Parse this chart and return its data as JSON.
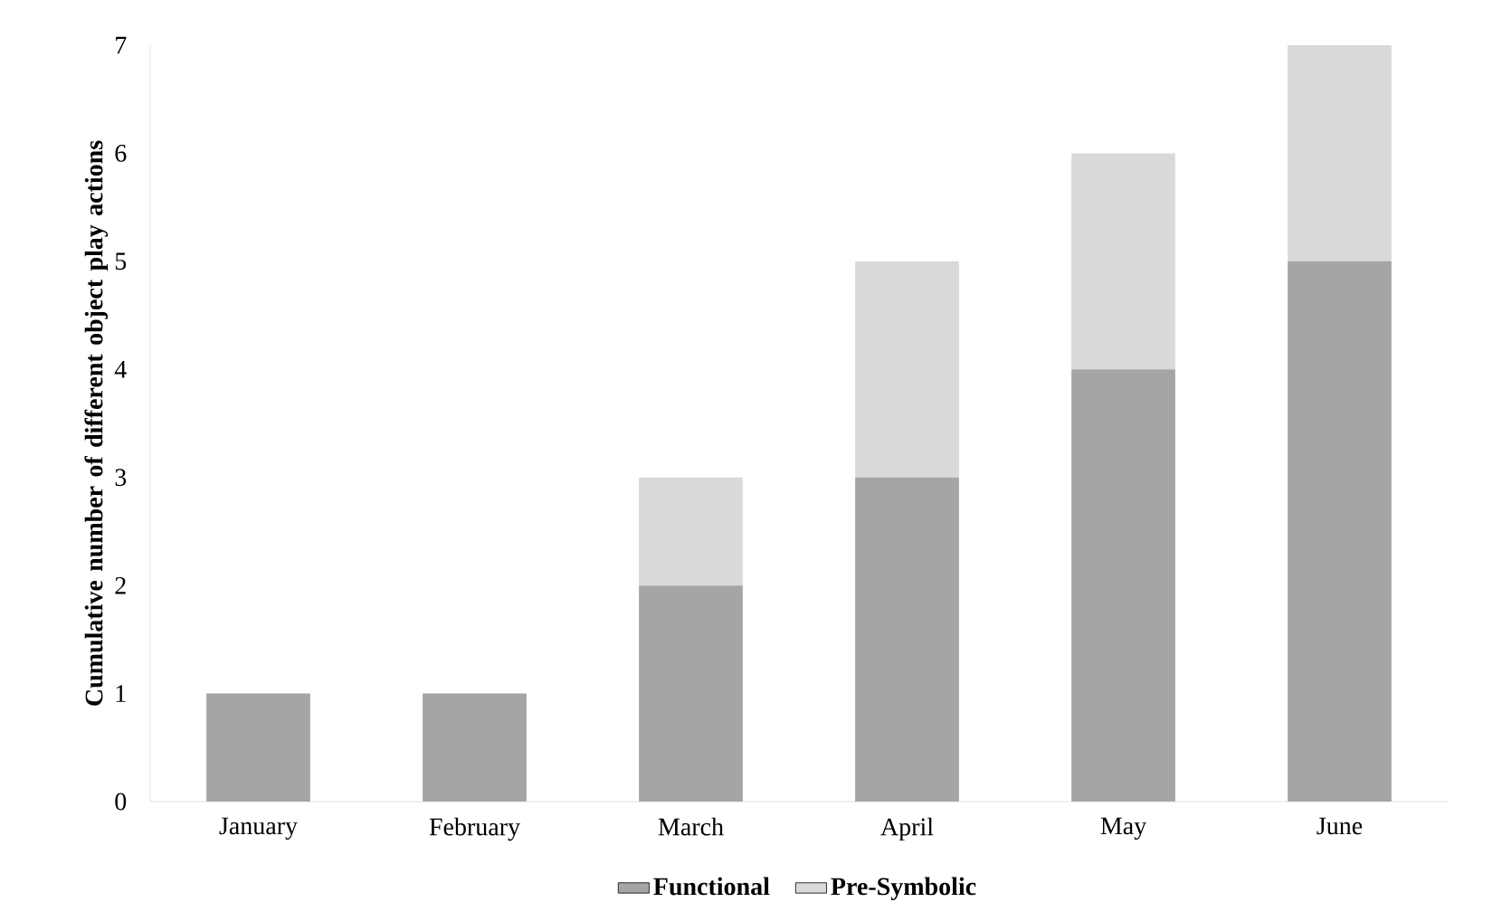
{
  "chart_data": {
    "type": "bar",
    "stacked": true,
    "ylabel": "Cumulative number of different object play actions",
    "categories": [
      "January",
      "February",
      "March",
      "April",
      "May",
      "June"
    ],
    "series": [
      {
        "name": "Functional",
        "color": "#a5a5a5",
        "values": [
          1,
          1,
          2,
          3,
          4,
          5
        ]
      },
      {
        "name": "Pre-Symbolic",
        "color": "#d9d9d9",
        "values": [
          0,
          0,
          1,
          2,
          2,
          2
        ]
      }
    ],
    "ylim": [
      0,
      7
    ],
    "yticks": [
      0,
      1,
      2,
      3,
      4,
      5,
      6,
      7
    ],
    "grid": false,
    "legend": "bottom"
  }
}
